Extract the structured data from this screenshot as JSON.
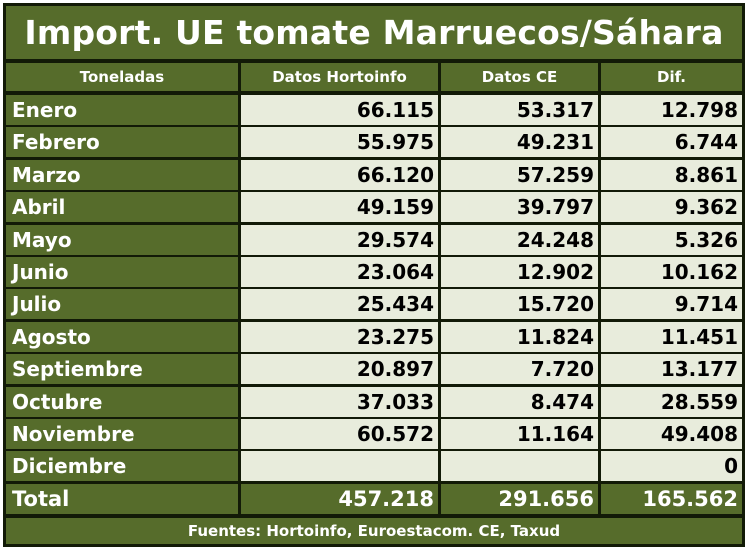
{
  "title": "Import. UE tomate Marruecos/Sáhara",
  "header": {
    "col_month": "Toneladas",
    "col_hortoinfo": "Datos Hortoinfo",
    "col_ce": "Datos CE",
    "col_dif": "Dif."
  },
  "rows": [
    {
      "month": "Enero",
      "hortoinfo": "66.115",
      "ce": "53.317",
      "dif": "12.798"
    },
    {
      "month": "Febrero",
      "hortoinfo": "55.975",
      "ce": "49.231",
      "dif": "6.744"
    },
    {
      "month": "Marzo",
      "hortoinfo": "66.120",
      "ce": "57.259",
      "dif": "8.861"
    },
    {
      "month": "Abril",
      "hortoinfo": "49.159",
      "ce": "39.797",
      "dif": "9.362"
    },
    {
      "month": "Mayo",
      "hortoinfo": "29.574",
      "ce": "24.248",
      "dif": "5.326"
    },
    {
      "month": "Junio",
      "hortoinfo": "23.064",
      "ce": "12.902",
      "dif": "10.162"
    },
    {
      "month": "Julio",
      "hortoinfo": "25.434",
      "ce": "15.720",
      "dif": "9.714"
    },
    {
      "month": "Agosto",
      "hortoinfo": "23.275",
      "ce": "11.824",
      "dif": "11.451"
    },
    {
      "month": "Septiembre",
      "hortoinfo": "20.897",
      "ce": "7.720",
      "dif": "13.177"
    },
    {
      "month": "Octubre",
      "hortoinfo": "37.033",
      "ce": "8.474",
      "dif": "28.559"
    },
    {
      "month": "Noviembre",
      "hortoinfo": "60.572",
      "ce": "11.164",
      "dif": "49.408"
    },
    {
      "month": "Diciembre",
      "hortoinfo": "",
      "ce": "",
      "dif": "0"
    }
  ],
  "total": {
    "label": "Total",
    "hortoinfo": "457.218",
    "ce": "291.656",
    "dif": "165.562"
  },
  "footer": "Fuentes: Hortoinfo, Euroestacom. CE, Taxud",
  "colors": {
    "header_green": "#566c2b",
    "cell_bg": "#e8ecdc",
    "border": "#121a07"
  }
}
